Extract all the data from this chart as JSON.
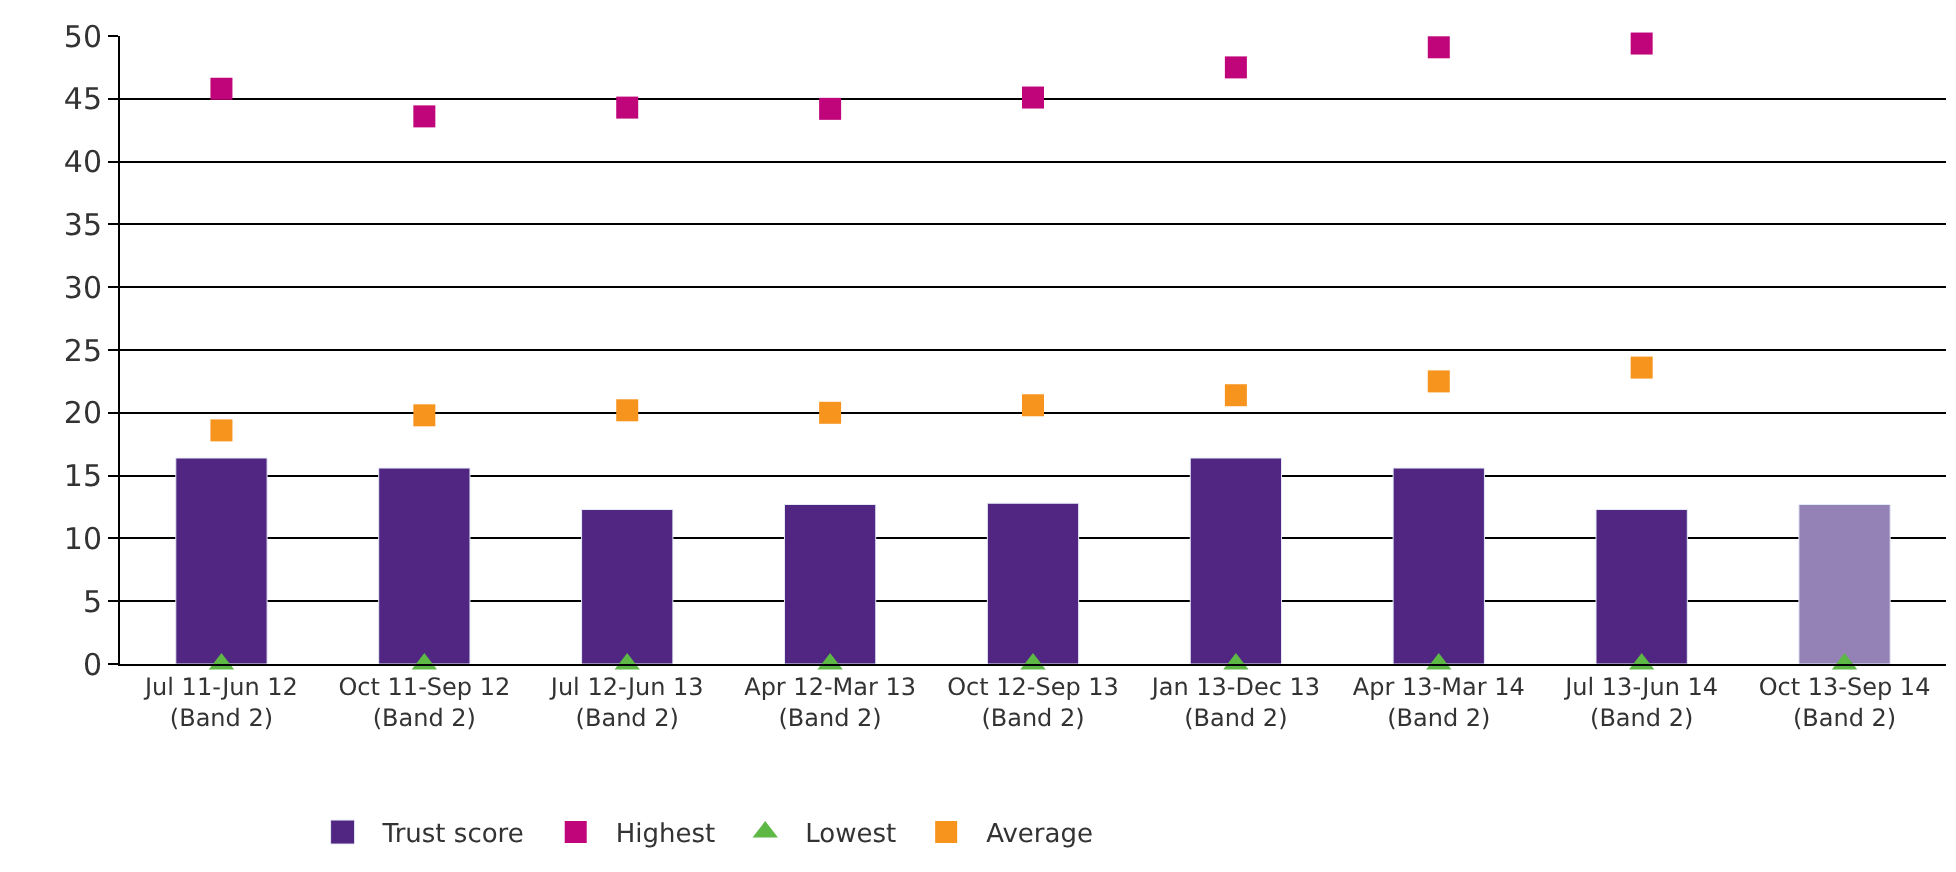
{
  "chart_data": {
    "type": "bar",
    "categories": [
      "Jul 11-Jun 12\n(Band 2)",
      "Oct 11-Sep 12\n(Band 2)",
      "Jul 12-Jun 13\n(Band 2)",
      "Apr 12-Mar 13\n(Band 2)",
      "Oct 12-Sep 13\n(Band 2)",
      "Jan 13-Dec 13\n(Band 2)",
      "Apr 13-Mar 14\n(Band 2)",
      "Jul 13-Jun 14\n(Band 2)",
      "Oct 13-Sep 14\n(Band 2)"
    ],
    "series": [
      {
        "name": "Trust score",
        "color": "#512682",
        "colors": [
          "#512682",
          "#512682",
          "#512682",
          "#512682",
          "#512682",
          "#512682",
          "#512682",
          "#512682",
          "#9481b5"
        ],
        "values": [
          16.4,
          15.6,
          12.3,
          12.7,
          12.8,
          16.4,
          15.6,
          12.3,
          12.7
        ]
      },
      {
        "name": "Highest",
        "type": "scatter",
        "marker": "square",
        "color": "#c0047a",
        "values": [
          45.8,
          43.6,
          44.3,
          44.2,
          45.1,
          47.5,
          49.1,
          49.4,
          null
        ]
      },
      {
        "name": "Lowest",
        "type": "scatter",
        "marker": "triangle",
        "color": "#5db846",
        "values": [
          0,
          0,
          0,
          0,
          0,
          0,
          0,
          0,
          0
        ]
      },
      {
        "name": "Average",
        "type": "scatter",
        "marker": "square",
        "color": "#f7941d",
        "values": [
          18.6,
          19.8,
          20.2,
          20.0,
          20.6,
          21.4,
          22.5,
          23.6,
          null
        ]
      }
    ],
    "ylim": [
      0,
      50
    ],
    "yticks": [
      0,
      5,
      10,
      15,
      20,
      25,
      30,
      35,
      40,
      45,
      50
    ],
    "grid": "y",
    "legend": "bottom"
  }
}
